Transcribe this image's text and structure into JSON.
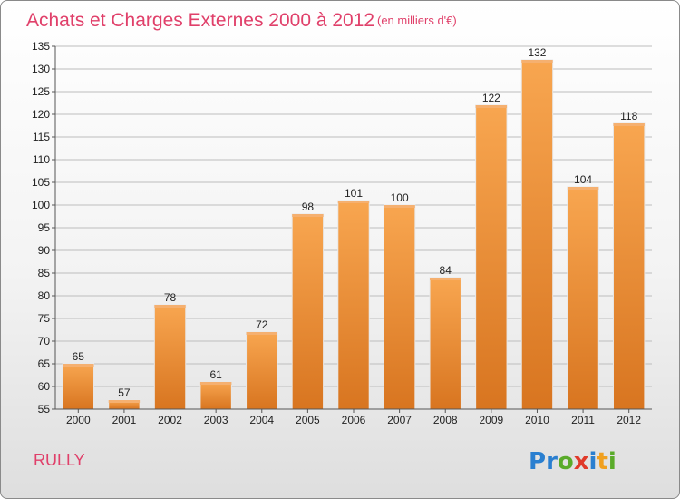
{
  "title": "Achats et Charges Externes 2000 à 2012",
  "title_unit": "(en milliers d'€)",
  "commune": "RULLY",
  "logo": {
    "text": "Proxiti",
    "letters": [
      {
        "ch": "P",
        "color": "#2a7fd0"
      },
      {
        "ch": "r",
        "color": "#2a7fd0"
      },
      {
        "ch": "o",
        "color": "#5aab2a"
      },
      {
        "ch": "x",
        "color": "#e03a2a"
      },
      {
        "ch": "i",
        "color": "#2a7fd0"
      },
      {
        "ch": "t",
        "color": "#f0a020"
      },
      {
        "ch": "i",
        "color": "#5aab2a"
      }
    ]
  },
  "colors": {
    "bar_light": "#f8a650",
    "bar_dark": "#d87520",
    "bar_top": "#f5b070",
    "title": "#e0406a",
    "grid": "#bdbdbd"
  },
  "chart_data": {
    "type": "bar",
    "categories": [
      "2000",
      "2001",
      "2002",
      "2003",
      "2004",
      "2005",
      "2006",
      "2007",
      "2008",
      "2009",
      "2010",
      "2011",
      "2012"
    ],
    "values": [
      65,
      57,
      78,
      61,
      72,
      98,
      101,
      100,
      84,
      122,
      132,
      104,
      118
    ],
    "ylim": [
      55,
      135
    ],
    "yticks": [
      55,
      60,
      65,
      70,
      75,
      80,
      85,
      90,
      95,
      100,
      105,
      110,
      115,
      120,
      125,
      130,
      135
    ],
    "grid": true,
    "xlabel": "",
    "ylabel": ""
  }
}
